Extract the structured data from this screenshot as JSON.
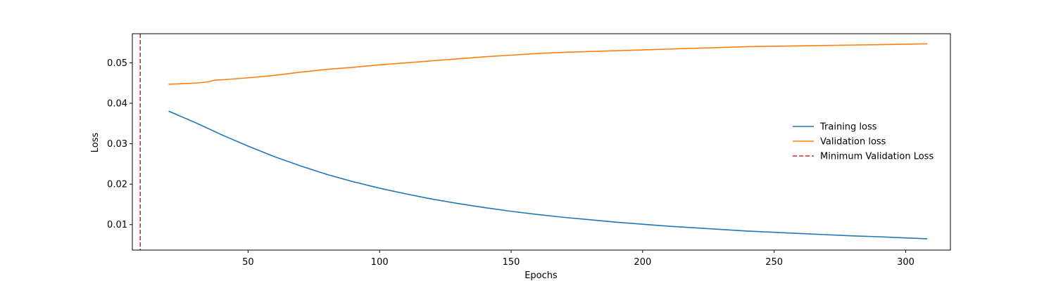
{
  "chart_data": {
    "type": "line",
    "xlabel": "Epochs",
    "ylabel": "Loss",
    "xlim": [
      6,
      317
    ],
    "ylim": [
      0.0037,
      0.0572
    ],
    "xticks": [
      50,
      100,
      150,
      200,
      250,
      300
    ],
    "yticks": [
      0.01,
      0.02,
      0.03,
      0.04,
      0.05
    ],
    "grid": false,
    "legend_position": "center-right",
    "series": [
      {
        "name": "Training loss",
        "color": "#1f77b4",
        "style": "solid",
        "x": [
          20,
          30,
          40,
          50,
          60,
          70,
          80,
          90,
          100,
          110,
          120,
          130,
          140,
          150,
          160,
          170,
          180,
          190,
          200,
          210,
          220,
          230,
          240,
          250,
          260,
          270,
          280,
          290,
          300,
          308
        ],
        "y": [
          0.038,
          0.0352,
          0.0322,
          0.0294,
          0.0268,
          0.0245,
          0.0224,
          0.0206,
          0.019,
          0.0176,
          0.0163,
          0.0152,
          0.0142,
          0.0133,
          0.0125,
          0.0118,
          0.0112,
          0.0106,
          0.0101,
          0.0096,
          0.0092,
          0.0088,
          0.0084,
          0.0081,
          0.0078,
          0.0075,
          0.0072,
          0.007,
          0.0067,
          0.0065
        ]
      },
      {
        "name": "Validation loss",
        "color": "#ff7f0e",
        "style": "solid",
        "x": [
          20,
          30,
          35,
          37,
          40,
          50,
          60,
          70,
          80,
          90,
          100,
          110,
          120,
          130,
          140,
          150,
          160,
          170,
          180,
          190,
          200,
          210,
          220,
          230,
          240,
          250,
          260,
          270,
          280,
          290,
          300,
          308
        ],
        "y": [
          0.0447,
          0.045,
          0.0453,
          0.0457,
          0.0458,
          0.0463,
          0.0469,
          0.0477,
          0.0484,
          0.0489,
          0.0495,
          0.05,
          0.0505,
          0.051,
          0.0515,
          0.0519,
          0.0523,
          0.0526,
          0.0528,
          0.053,
          0.0532,
          0.0534,
          0.0536,
          0.0538,
          0.054,
          0.0541,
          0.0542,
          0.0543,
          0.0544,
          0.0545,
          0.0546,
          0.0547
        ]
      }
    ],
    "vlines": [
      {
        "name": "Minimum Validation Loss",
        "x": 9,
        "color": "#d62728",
        "style": "dashed"
      }
    ]
  }
}
